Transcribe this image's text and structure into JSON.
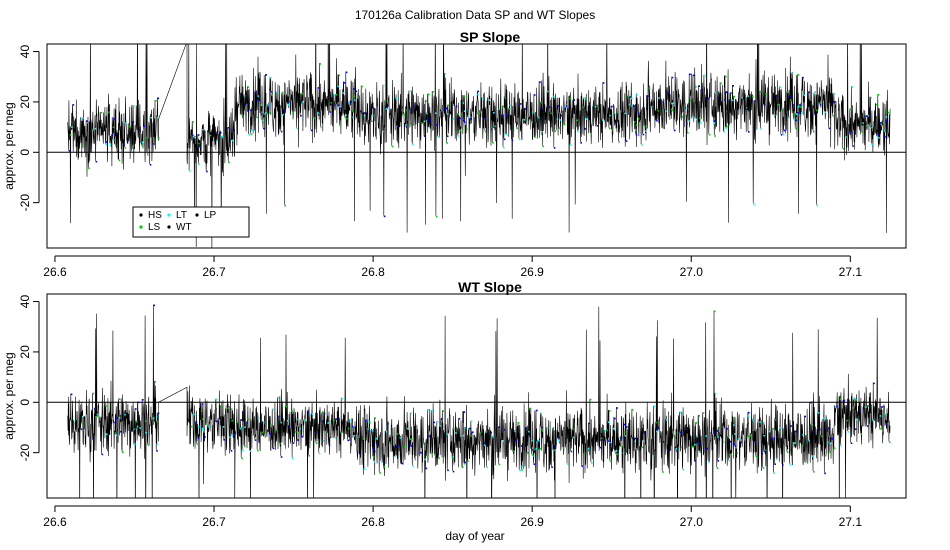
{
  "figure": {
    "suptitle": "170126a   Calibration Data SP and WT Slopes",
    "xlabel": "day of year"
  },
  "chart_data": [
    {
      "type": "line",
      "title": "SP Slope",
      "xlabel": "",
      "ylabel": "approx. per meg",
      "xlim": [
        26.595,
        27.135
      ],
      "ylim": [
        -38,
        43
      ],
      "xticks": [
        26.6,
        26.7,
        26.8,
        26.9,
        27.0,
        27.1
      ],
      "xtick_labels": [
        "26.6",
        "26.7",
        "26.8",
        "26.9",
        "27.0",
        "27.1"
      ],
      "yticks": [
        -20,
        0,
        20,
        40
      ],
      "ytick_labels": [
        "-20",
        "0",
        "20",
        "40"
      ],
      "hline": 0,
      "legend": {
        "position": "bottom-left",
        "entries": [
          {
            "label": "HS",
            "color": "#000000"
          },
          {
            "label": "LT",
            "color": "#00ffff"
          },
          {
            "label": "LP",
            "color": "#000000"
          },
          {
            "label": "LS",
            "color": "#00cc00"
          },
          {
            "label": "WT",
            "color": "#000000"
          }
        ]
      },
      "series_colors": {
        "line": "#000000",
        "points_a": "#0000ff",
        "points_b": "#00cc00",
        "points_c": "#00ffff"
      },
      "data_segments": [
        {
          "x_start": 26.608,
          "x_end": 26.665,
          "mean": 8,
          "spread": 13
        },
        {
          "x_start": 26.683,
          "x_end": 26.713,
          "mean": 5,
          "spread": 13
        },
        {
          "x_start": 26.713,
          "x_end": 26.79,
          "mean": 19,
          "spread": 14
        },
        {
          "x_start": 26.79,
          "x_end": 26.97,
          "mean": 15,
          "spread": 13
        },
        {
          "x_start": 26.97,
          "x_end": 27.09,
          "mean": 19,
          "spread": 14
        },
        {
          "x_start": 27.09,
          "x_end": 27.125,
          "mean": 11,
          "spread": 13
        }
      ],
      "gap_connector": {
        "x": [
          26.665,
          26.683
        ],
        "y": [
          13,
          44
        ]
      }
    },
    {
      "type": "line",
      "title": "WT Slope",
      "xlabel": "day of year",
      "ylabel": "approx. per meg",
      "xlim": [
        26.595,
        27.135
      ],
      "ylim": [
        -38,
        43
      ],
      "xticks": [
        26.6,
        26.7,
        26.8,
        26.9,
        27.0,
        27.1
      ],
      "xtick_labels": [
        "26.6",
        "26.7",
        "26.8",
        "26.9",
        "27.0",
        "27.1"
      ],
      "yticks": [
        -20,
        0,
        20,
        40
      ],
      "ytick_labels": [
        "-20",
        "0",
        "20",
        "40"
      ],
      "hline": 0,
      "series_colors": {
        "line": "#000000",
        "points_a": "#0000ff",
        "points_b": "#00cc00",
        "points_c": "#00ffff"
      },
      "data_segments": [
        {
          "x_start": 26.608,
          "x_end": 26.665,
          "mean": -8,
          "spread": 13
        },
        {
          "x_start": 26.683,
          "x_end": 26.713,
          "mean": -8,
          "spread": 13
        },
        {
          "x_start": 26.713,
          "x_end": 26.79,
          "mean": -10,
          "spread": 12
        },
        {
          "x_start": 26.79,
          "x_end": 26.97,
          "mean": -15,
          "spread": 14
        },
        {
          "x_start": 26.97,
          "x_end": 27.09,
          "mean": -14,
          "spread": 14
        },
        {
          "x_start": 27.09,
          "x_end": 27.125,
          "mean": -5,
          "spread": 13
        }
      ],
      "gap_connector": {
        "x": [
          26.665,
          26.683
        ],
        "y": [
          0,
          6
        ]
      }
    }
  ]
}
